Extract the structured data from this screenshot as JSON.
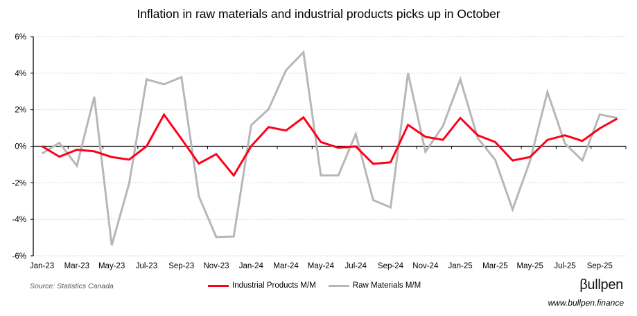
{
  "chart_data": {
    "type": "line",
    "title": "Inflation in raw materials and industrial products picks up in October",
    "x": [
      "Jan-23",
      "Feb-23",
      "Mar-23",
      "Apr-23",
      "May-23",
      "Jun-23",
      "Jul-23",
      "Aug-23",
      "Sep-23",
      "Oct-23",
      "Nov-23",
      "Dec-23",
      "Jan-24",
      "Feb-24",
      "Mar-24",
      "Apr-24",
      "May-24",
      "Jun-24",
      "Jul-24",
      "Aug-24",
      "Sep-24",
      "Oct-24",
      "Nov-24",
      "Dec-24",
      "Jan-25",
      "Feb-25",
      "Mar-25",
      "Apr-25",
      "May-25",
      "Jun-25",
      "Jul-25",
      "Aug-25",
      "Sep-25",
      "Oct-25"
    ],
    "x_tick_labels": [
      "Jan-23",
      "Mar-23",
      "May-23",
      "Jul-23",
      "Sep-23",
      "Nov-23",
      "Jan-24",
      "Mar-24",
      "May-24",
      "Jul-24",
      "Sep-24",
      "Nov-24",
      "Jan-25",
      "Mar-25",
      "May-25",
      "Jul-25",
      "Sep-25"
    ],
    "y_tick_labels": [
      "6%",
      "4%",
      "2%",
      "0%",
      "-2%",
      "-4%",
      "-6%"
    ],
    "ylim": [
      -6,
      6
    ],
    "grid": "horizontal dotted",
    "legend": "bottom",
    "series": [
      {
        "name": "Industrial Products M/M",
        "color": "#ff0019",
        "values": [
          0.0,
          -0.57,
          -0.19,
          -0.28,
          -0.59,
          -0.73,
          0.0,
          1.73,
          0.4,
          -0.95,
          -0.43,
          -1.6,
          0.0,
          1.05,
          0.86,
          1.58,
          0.23,
          -0.08,
          -0.01,
          -0.96,
          -0.88,
          1.17,
          0.52,
          0.35,
          1.55,
          0.6,
          0.23,
          -0.78,
          -0.59,
          0.35,
          0.6,
          0.29,
          0.98,
          1.51
        ]
      },
      {
        "name": "Raw Materials M/M",
        "color": "#b7b7b7",
        "values": [
          -0.4,
          0.19,
          -1.07,
          2.71,
          -5.42,
          -2.04,
          3.66,
          3.39,
          3.78,
          -2.74,
          -4.97,
          -4.94,
          1.15,
          2.03,
          4.16,
          5.15,
          -1.6,
          -1.6,
          0.67,
          -2.95,
          -3.35,
          4.0,
          -0.3,
          1.1,
          3.66,
          0.44,
          -0.74,
          -3.46,
          -0.8,
          2.97,
          0.16,
          -0.78,
          1.74,
          1.55
        ]
      }
    ]
  },
  "footer": {
    "source": "Source: Statistics Canada",
    "logo": "βullpen",
    "url": "www.bullpen.finance"
  }
}
